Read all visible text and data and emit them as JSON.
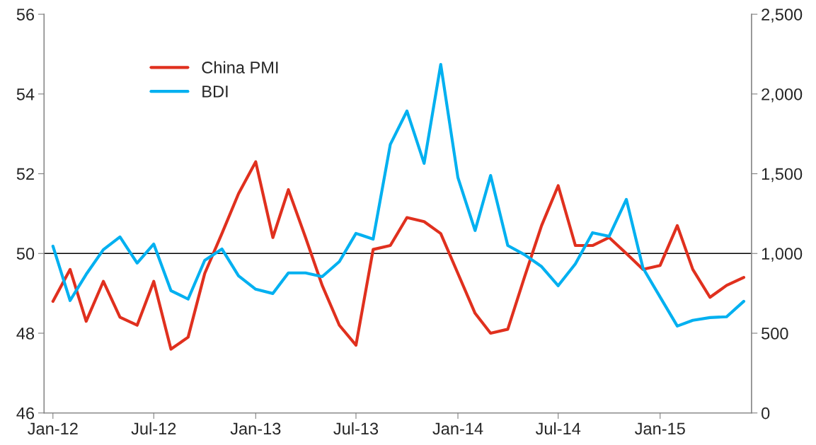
{
  "chart_data": {
    "type": "line",
    "x": [
      "2012-01",
      "2012-02",
      "2012-03",
      "2012-04",
      "2012-05",
      "2012-06",
      "2012-07",
      "2012-08",
      "2012-09",
      "2012-10",
      "2012-11",
      "2012-12",
      "2013-01",
      "2013-02",
      "2013-03",
      "2013-04",
      "2013-05",
      "2013-06",
      "2013-07",
      "2013-08",
      "2013-09",
      "2013-10",
      "2013-11",
      "2013-12",
      "2014-01",
      "2014-02",
      "2014-03",
      "2014-04",
      "2014-05",
      "2014-06",
      "2014-07",
      "2014-08",
      "2014-09",
      "2014-10",
      "2014-11",
      "2014-12",
      "2015-01",
      "2015-02",
      "2015-03",
      "2015-04",
      "2015-05",
      "2015-06"
    ],
    "series": [
      {
        "name": "China PMI",
        "color": "#e0301e",
        "values": [
          48.8,
          49.6,
          48.3,
          49.3,
          48.4,
          48.2,
          49.3,
          47.6,
          47.9,
          49.5,
          50.5,
          51.5,
          52.3,
          50.4,
          51.6,
          50.4,
          49.2,
          48.2,
          47.7,
          50.1,
          50.2,
          50.9,
          50.8,
          50.5,
          49.5,
          48.5,
          48.0,
          48.1,
          49.4,
          50.7,
          51.7,
          50.2,
          50.2,
          50.4,
          50.0,
          49.6,
          49.7,
          50.7,
          49.6,
          48.9,
          49.2,
          49.4
        ]
      },
      {
        "name": "BDI",
        "color": "#00b0f0",
        "axis": "y2",
        "values": [
          1046,
          705,
          869,
          1024,
          1104,
          940,
          1059,
          767,
          714,
          957,
          1028,
          860,
          776,
          749,
          878,
          878,
          855,
          949,
          1126,
          1090,
          1684,
          1893,
          1565,
          2185,
          1476,
          1144,
          1489,
          1050,
          993,
          918,
          798,
          935,
          1130,
          1108,
          1339,
          909,
          727,
          545,
          581,
          598,
          603,
          700
        ]
      }
    ],
    "xlim": [
      "2011-12-16",
      "2015-06-15"
    ],
    "xticks": [
      {
        "value": "2012-01",
        "label": "Jan-12"
      },
      {
        "value": "2012-07",
        "label": "Jul-12"
      },
      {
        "value": "2013-01",
        "label": "Jan-13"
      },
      {
        "value": "2013-07",
        "label": "Jul-13"
      },
      {
        "value": "2014-01",
        "label": "Jan-14"
      },
      {
        "value": "2014-07",
        "label": "Jul-14"
      },
      {
        "value": "2015-01",
        "label": "Jan-15"
      }
    ],
    "ylim": [
      46,
      56
    ],
    "yticks": [
      46,
      48,
      50,
      52,
      54,
      56
    ],
    "y2lim": [
      0,
      2500
    ],
    "y2ticks": [
      {
        "value": 0,
        "label": "0"
      },
      {
        "value": 500,
        "label": "500"
      },
      {
        "value": 1000,
        "label": "1,000"
      },
      {
        "value": 1500,
        "label": "1,500"
      },
      {
        "value": 2000,
        "label": "2,000"
      },
      {
        "value": 2500,
        "label": "2,500"
      }
    ],
    "ref_lines": [
      {
        "axis": "y",
        "value": 50,
        "color": "#000000"
      }
    ],
    "legend": "top left",
    "grid": false,
    "marker": "none",
    "line_style": "solid"
  }
}
